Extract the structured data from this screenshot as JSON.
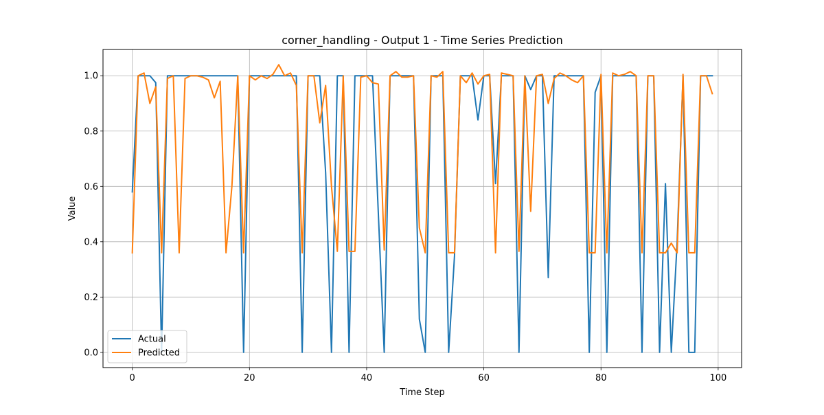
{
  "chart_data": {
    "type": "line",
    "title": "corner_handling - Output 1 - Time Series Prediction",
    "xlabel": "Time Step",
    "ylabel": "Value",
    "xlim": [
      -5.0,
      104.0
    ],
    "ylim": [
      -0.055,
      1.095
    ],
    "xticks": [
      0,
      20,
      40,
      60,
      80,
      100
    ],
    "xtick_labels": [
      "0",
      "20",
      "40",
      "60",
      "80",
      "100"
    ],
    "yticks": [
      0.0,
      0.2,
      0.4,
      0.6,
      0.8,
      1.0
    ],
    "ytick_labels": [
      "0.0",
      "0.2",
      "0.4",
      "0.6",
      "0.8",
      "1.0"
    ],
    "grid": true,
    "legend_position": "lower-left",
    "series": [
      {
        "name": "Actual",
        "color": "#1f77b4",
        "x": [
          0,
          1,
          2,
          3,
          4,
          5,
          6,
          7,
          8,
          9,
          10,
          11,
          12,
          13,
          14,
          15,
          16,
          17,
          18,
          19,
          20,
          21,
          22,
          23,
          24,
          25,
          26,
          27,
          28,
          29,
          30,
          31,
          32,
          33,
          34,
          35,
          36,
          37,
          38,
          39,
          40,
          41,
          42,
          43,
          44,
          45,
          46,
          47,
          48,
          49,
          50,
          51,
          52,
          53,
          54,
          55,
          56,
          57,
          58,
          59,
          60,
          61,
          62,
          63,
          64,
          65,
          66,
          67,
          68,
          69,
          70,
          71,
          72,
          73,
          74,
          75,
          76,
          77,
          78,
          79,
          80,
          81,
          82,
          83,
          84,
          85,
          86,
          87,
          88,
          89,
          90,
          91,
          92,
          93,
          94,
          95,
          96,
          97,
          98,
          99
        ],
        "values": [
          0.58,
          1.0,
          1.0,
          1.0,
          0.975,
          0.0,
          1.0,
          1.0,
          1.0,
          1.0,
          1.0,
          1.0,
          1.0,
          1.0,
          1.0,
          1.0,
          1.0,
          1.0,
          1.0,
          0.0,
          1.0,
          1.0,
          1.0,
          1.0,
          1.0,
          1.0,
          1.0,
          1.0,
          1.0,
          0.0,
          1.0,
          1.0,
          1.0,
          0.65,
          0.0,
          1.0,
          1.0,
          0.0,
          1.0,
          1.0,
          1.0,
          1.0,
          0.5,
          0.0,
          1.0,
          1.0,
          1.0,
          1.0,
          1.0,
          0.12,
          0.0,
          1.0,
          1.0,
          1.0,
          0.0,
          0.35,
          1.0,
          1.0,
          1.0,
          0.84,
          1.0,
          1.0,
          0.61,
          1.0,
          1.0,
          1.0,
          0.0,
          1.0,
          0.95,
          1.0,
          1.0,
          0.27,
          1.0,
          1.0,
          1.0,
          1.0,
          1.0,
          1.0,
          0.0,
          0.94,
          1.0,
          0.0,
          1.0,
          1.0,
          1.0,
          1.0,
          1.0,
          0.0,
          1.0,
          1.0,
          0.0,
          0.61,
          0.0,
          0.4,
          1.0,
          0.0,
          0.0,
          1.0,
          1.0,
          1.0
        ]
      },
      {
        "name": "Predicted",
        "color": "#ff7f0e",
        "x": [
          0,
          1,
          2,
          3,
          4,
          5,
          6,
          7,
          8,
          9,
          10,
          11,
          12,
          13,
          14,
          15,
          16,
          17,
          18,
          19,
          20,
          21,
          22,
          23,
          24,
          25,
          26,
          27,
          28,
          29,
          30,
          31,
          32,
          33,
          34,
          35,
          36,
          37,
          38,
          39,
          40,
          41,
          42,
          43,
          44,
          45,
          46,
          47,
          48,
          49,
          50,
          51,
          52,
          53,
          54,
          55,
          56,
          57,
          58,
          59,
          60,
          61,
          62,
          63,
          64,
          65,
          66,
          67,
          68,
          69,
          70,
          71,
          72,
          73,
          74,
          75,
          76,
          77,
          78,
          79,
          80,
          81,
          82,
          83,
          84,
          85,
          86,
          87,
          88,
          89,
          90,
          91,
          92,
          93,
          94,
          95,
          96,
          97,
          98,
          99
        ],
        "values": [
          0.36,
          1.0,
          1.01,
          0.9,
          0.96,
          0.36,
          0.99,
          1.0,
          0.36,
          0.99,
          1.0,
          1.0,
          0.995,
          0.985,
          0.92,
          0.98,
          0.36,
          0.6,
          1.0,
          0.36,
          1.0,
          0.985,
          1.0,
          0.99,
          1.005,
          1.04,
          1.0,
          1.01,
          0.965,
          0.36,
          1.0,
          1.0,
          0.83,
          0.965,
          0.6,
          0.365,
          1.0,
          0.365,
          0.365,
          0.995,
          1.0,
          0.975,
          0.97,
          0.37,
          1.0,
          1.015,
          0.995,
          0.995,
          1.0,
          0.45,
          0.36,
          1.0,
          0.995,
          1.015,
          0.36,
          0.36,
          1.0,
          0.975,
          1.01,
          0.97,
          1.0,
          1.005,
          0.36,
          1.01,
          1.005,
          1.0,
          0.365,
          1.0,
          0.51,
          1.0,
          1.005,
          0.9,
          0.99,
          1.01,
          1.0,
          0.985,
          0.975,
          1.0,
          0.36,
          0.36,
          1.005,
          0.36,
          1.01,
          1.0,
          1.005,
          1.015,
          1.0,
          0.36,
          1.0,
          1.0,
          0.36,
          0.36,
          0.395,
          0.36,
          1.005,
          0.36,
          0.36,
          1.0,
          1.0,
          0.935
        ]
      }
    ]
  }
}
